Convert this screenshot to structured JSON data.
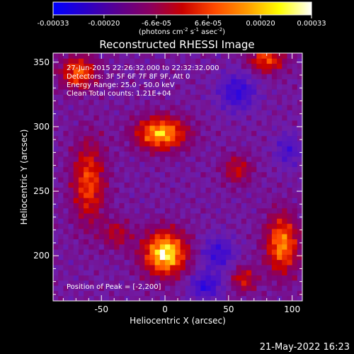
{
  "colorbar": {
    "tick_labels": [
      "-0.00033",
      "-0.00020",
      "-6.6e-05",
      "6.6e-05",
      "0.00020",
      "0.00033"
    ],
    "tick_values": [
      -0.00033,
      -0.0002,
      -6.6e-05,
      6.6e-05,
      0.0002,
      0.00033
    ],
    "range": [
      -0.00033,
      0.00033
    ],
    "units_text": "(photons cm",
    "units_sup1": "-2",
    "units_mid": " s",
    "units_sup2": "-1",
    "units_end": " asec",
    "units_sup3": "-2",
    "units_close": ")",
    "colors": [
      "#0000ff",
      "#2a00c8",
      "#5a0090",
      "#8a0060",
      "#c80000",
      "#ff4a00",
      "#ff9a00",
      "#ffff00",
      "#ffffff"
    ]
  },
  "chart_data": {
    "type": "heatmap",
    "title": "Reconstructed RHESSI Image",
    "xlabel": "Heliocentric X (arcsec)",
    "ylabel": "Heliocentric Y (arcsec)",
    "xlim": [
      -88,
      108
    ],
    "ylim": [
      165,
      357
    ],
    "x_ticks": [
      -50,
      0,
      50,
      100
    ],
    "x_tick_labels": [
      "-50",
      "0",
      "50",
      "100"
    ],
    "y_ticks": [
      200,
      250,
      300,
      350
    ],
    "y_tick_labels": [
      "200",
      "250",
      "300",
      "350"
    ],
    "annotations": [
      "27-Jun-2015 22:26:32.000 to 22:32:32.000",
      "Detectors: 3F 5F 6F 7F 8F 9F, Att 0",
      "Energy Range: 25.0 - 50.0 keV",
      "Clean     Total counts: 1.21E+04"
    ],
    "peak_label": "Position of Peak = [-2,200]",
    "peak": [
      -2,
      200
    ],
    "sources": [
      {
        "x": -2,
        "y": 200,
        "amp": 1.0,
        "sx": 12,
        "sy": 12
      },
      {
        "x": -5,
        "y": 293,
        "amp": 0.85,
        "sx": 14,
        "sy": 9
      },
      {
        "x": 90,
        "y": 207,
        "amp": 0.75,
        "sx": 9,
        "sy": 16
      },
      {
        "x": -62,
        "y": 255,
        "amp": 0.6,
        "sx": 9,
        "sy": 22
      },
      {
        "x": -70,
        "y": 340,
        "amp": 0.65,
        "sx": 10,
        "sy": 9
      },
      {
        "x": 78,
        "y": 350,
        "amp": 0.6,
        "sx": 10,
        "sy": 7
      },
      {
        "x": 55,
        "y": 265,
        "amp": 0.4,
        "sx": 8,
        "sy": 8
      },
      {
        "x": 60,
        "y": 180,
        "amp": 0.45,
        "sx": 7,
        "sy": 7
      },
      {
        "x": -40,
        "y": 215,
        "amp": 0.35,
        "sx": 8,
        "sy": 8
      }
    ],
    "negative_regions": [
      {
        "x": 55,
        "y": 325,
        "amp": 0.5,
        "sx": 10,
        "sy": 10
      },
      {
        "x": 40,
        "y": 200,
        "amp": 0.45,
        "sx": 9,
        "sy": 9
      },
      {
        "x": 30,
        "y": 175,
        "amp": 0.5,
        "sx": 9,
        "sy": 7
      },
      {
        "x": 95,
        "y": 280,
        "amp": 0.35,
        "sx": 7,
        "sy": 9
      }
    ]
  },
  "footer": {
    "timestamp": "21-May-2022 16:23"
  }
}
